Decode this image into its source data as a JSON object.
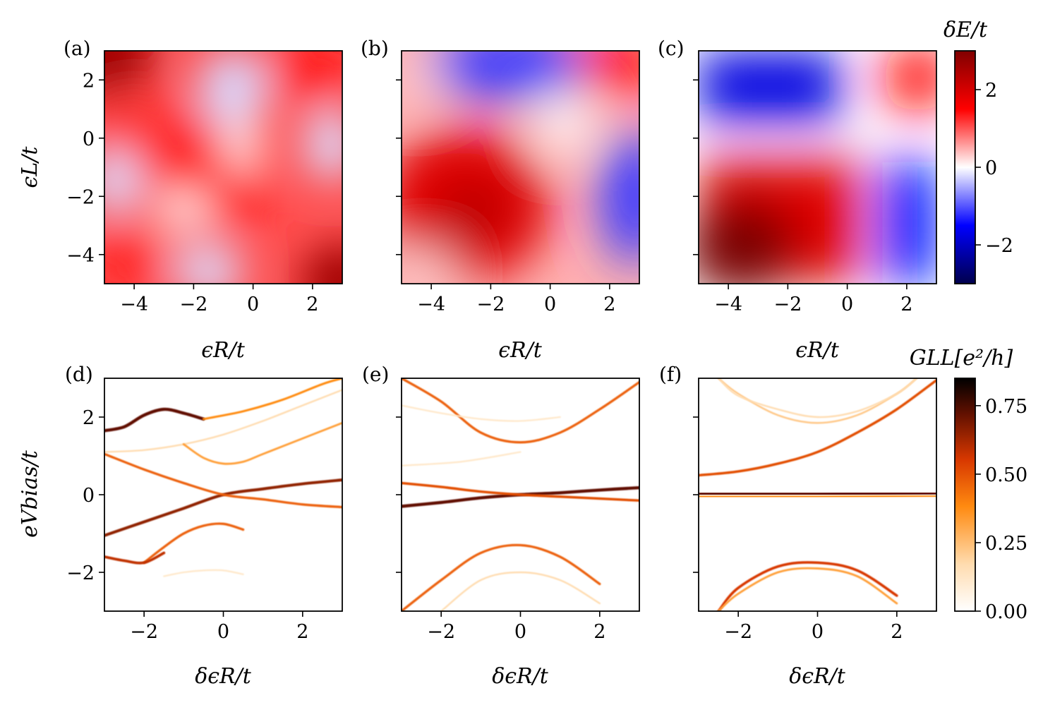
{
  "figure": {
    "top_row": {
      "xlabel": "ϵR/t",
      "ylabel": "ϵL/t",
      "xlim": [
        -5,
        3
      ],
      "ylim": [
        -5,
        3
      ],
      "xticks": [
        -4,
        -2,
        0,
        2
      ],
      "yticks": [
        -4,
        -2,
        0,
        2
      ],
      "xtick_labels": [
        "−4",
        "−2",
        "0",
        "2"
      ],
      "ytick_labels": [
        "−4",
        "−2",
        "0",
        "2"
      ]
    },
    "bottom_row": {
      "xlabel": "δϵR/t",
      "ylabel": "eVbias/t",
      "xlim": [
        -3,
        3
      ],
      "ylim": [
        -3,
        3
      ],
      "xticks": [
        -2,
        0,
        2
      ],
      "yticks": [
        -2,
        0,
        2
      ],
      "xtick_labels": [
        "−2",
        "0",
        "2"
      ],
      "ytick_labels": [
        "−2",
        "0",
        "2"
      ]
    },
    "panels": [
      "(a)",
      "(b)",
      "(c)",
      "(d)",
      "(e)",
      "(f)"
    ],
    "colorbar_top": {
      "title": "δE/t",
      "range": [
        -3,
        3
      ],
      "ticks": [
        -2,
        0,
        2
      ],
      "tick_labels": [
        "−2",
        "0",
        "2"
      ],
      "colormap": "seismic",
      "colors": [
        "#00004c",
        "#0000ff",
        "#ffffff",
        "#ff0000",
        "#800000"
      ]
    },
    "colorbar_bottom": {
      "title": "GLL[e²/h]",
      "range": [
        0,
        0.85
      ],
      "ticks": [
        0,
        0.25,
        0.5,
        0.75
      ],
      "tick_labels": [
        "0.00",
        "0.25",
        "0.50",
        "0.75"
      ],
      "colormap": "gist_heat_r",
      "colors": [
        "#ffffff",
        "#ffc080",
        "#ff7f00",
        "#bf2000",
        "#000000"
      ]
    }
  },
  "chart_data": [
    {
      "type": "heatmap",
      "panel": "(a)",
      "xlabel": "ϵR/t",
      "ylabel": "ϵL/t",
      "xlim": [
        -5,
        3
      ],
      "ylim": [
        -5,
        3
      ],
      "color_range": [
        -3,
        3
      ],
      "description": "δE/t map: red background, weak blue lobes at (-1,2.5),(2.5,-0.5),(-4.5,-1.2),(-1.5,-4.5); dark red corners at (-5,3) and (3,-5)",
      "features": [
        {
          "at": [
            -5,
            3
          ],
          "value": 2.6
        },
        {
          "at": [
            3,
            -5
          ],
          "value": 2.6
        },
        {
          "at": [
            -1,
            2.5
          ],
          "value": -0.6
        },
        {
          "at": [
            2.5,
            -0.5
          ],
          "value": -0.6
        },
        {
          "at": [
            -4.5,
            -1.2
          ],
          "value": -0.6
        },
        {
          "at": [
            -1.5,
            -4.5
          ],
          "value": -0.5
        },
        {
          "at": [
            -1,
            -1
          ],
          "value": 1.2
        }
      ]
    },
    {
      "type": "heatmap",
      "panel": "(b)",
      "xlabel": "ϵR/t",
      "ylabel": "ϵL/t",
      "xlim": [
        -5,
        3
      ],
      "ylim": [
        -5,
        3
      ],
      "color_range": [
        -3,
        3
      ],
      "features": [
        {
          "at": [
            -2.5,
            -2.5
          ],
          "value": 2.0
        },
        {
          "at": [
            -2,
            2.5
          ],
          "value": -1.6
        },
        {
          "at": [
            2.5,
            -2.5
          ],
          "value": -1.6
        },
        {
          "at": [
            2.5,
            2.5
          ],
          "value": 1.5
        },
        {
          "at": [
            0,
            0
          ],
          "value": 0.0
        }
      ]
    },
    {
      "type": "heatmap",
      "panel": "(c)",
      "xlabel": "ϵR/t",
      "ylabel": "ϵL/t",
      "xlim": [
        -5,
        3
      ],
      "ylim": [
        -5,
        3
      ],
      "color_range": [
        -3,
        3
      ],
      "features": [
        {
          "at": [
            -4,
            -4
          ],
          "value": 2.6
        },
        {
          "at": [
            -2,
            2.5
          ],
          "value": -2.0
        },
        {
          "at": [
            2.5,
            -2.5
          ],
          "value": -2.0
        },
        {
          "at": [
            2.5,
            2.5
          ],
          "value": 1.4
        },
        {
          "at": [
            0.2,
            0.2
          ],
          "value": 0.0
        }
      ]
    },
    {
      "type": "heatmap",
      "panel": "(d)",
      "xlabel": "δϵR/t",
      "ylabel": "eVbias/t",
      "xlim": [
        -3,
        3
      ],
      "ylim": [
        -3,
        3
      ],
      "color_range": [
        0,
        0.85
      ],
      "lines": [
        {
          "name": "zero-mode branch up",
          "x": [
            -3,
            -2,
            -1,
            0,
            1,
            2,
            3
          ],
          "y": [
            -1.05,
            -0.7,
            -0.35,
            0.0,
            0.15,
            0.28,
            0.38
          ],
          "intensity": 0.7
        },
        {
          "name": "zero-mode branch down",
          "x": [
            -3,
            -2,
            -1,
            0,
            1,
            2,
            3
          ],
          "y": [
            1.05,
            0.65,
            0.3,
            0.0,
            -0.12,
            -0.25,
            -0.32
          ],
          "intensity": 0.45
        },
        {
          "name": "upper band",
          "x": [
            -3,
            -2.5,
            -2,
            -1.5,
            -1,
            -0.5
          ],
          "y": [
            1.65,
            1.75,
            2.05,
            2.2,
            2.1,
            1.95
          ],
          "intensity": 0.8
        },
        {
          "name": "upper band 2",
          "x": [
            -0.5,
            0.5,
            1.5,
            2.5,
            3
          ],
          "y": [
            1.95,
            2.15,
            2.45,
            2.85,
            3.0
          ],
          "intensity": 0.35
        },
        {
          "name": "mid band",
          "x": [
            -3,
            -2,
            -1,
            0,
            1,
            2,
            3
          ],
          "y": [
            1.1,
            1.15,
            1.3,
            1.55,
            1.9,
            2.3,
            2.7
          ],
          "intensity": 0.15
        },
        {
          "name": "gap band upper",
          "x": [
            -1,
            -0.5,
            0,
            0.5,
            1,
            2,
            3
          ],
          "y": [
            1.3,
            0.95,
            0.8,
            0.85,
            1.05,
            1.45,
            1.85
          ],
          "intensity": 0.3
        },
        {
          "name": "gap band lower",
          "x": [
            -2,
            -1.5,
            -1,
            -0.5,
            0,
            0.5
          ],
          "y": [
            -1.75,
            -1.35,
            -1.0,
            -0.8,
            -0.75,
            -0.9
          ],
          "intensity": 0.45
        },
        {
          "name": "lower band",
          "x": [
            -3,
            -2.5,
            -2,
            -1.5
          ],
          "y": [
            -1.6,
            -1.7,
            -1.75,
            -1.5
          ],
          "intensity": 0.6
        },
        {
          "name": "lower faint",
          "x": [
            -1.5,
            -1,
            -0.5,
            0,
            0.5
          ],
          "y": [
            -2.1,
            -2.0,
            -1.95,
            -1.95,
            -2.05
          ],
          "intensity": 0.1
        }
      ]
    },
    {
      "type": "heatmap",
      "panel": "(e)",
      "xlabel": "δϵR/t",
      "ylabel": "eVbias/t",
      "xlim": [
        -3,
        3
      ],
      "ylim": [
        -3,
        3
      ],
      "color_range": [
        0,
        0.85
      ],
      "lines": [
        {
          "name": "zero mode up",
          "x": [
            -3,
            -2,
            -1,
            0,
            1,
            2,
            3
          ],
          "y": [
            -0.3,
            -0.2,
            -0.08,
            0.0,
            0.05,
            0.12,
            0.18
          ],
          "intensity": 0.8
        },
        {
          "name": "zero mode down",
          "x": [
            -3,
            -2,
            -1,
            0,
            1,
            2,
            3
          ],
          "y": [
            0.3,
            0.2,
            0.08,
            0.0,
            -0.05,
            -0.1,
            -0.15
          ],
          "intensity": 0.5
        },
        {
          "name": "upper band",
          "x": [
            -3,
            -2,
            -1,
            0,
            1,
            2,
            3
          ],
          "y": [
            3.0,
            2.4,
            1.6,
            1.35,
            1.6,
            2.2,
            2.9
          ],
          "intensity": 0.45
        },
        {
          "name": "upper faint",
          "x": [
            -3,
            -2,
            -1,
            0,
            1
          ],
          "y": [
            2.3,
            2.1,
            1.95,
            1.9,
            2.0
          ],
          "intensity": 0.1
        },
        {
          "name": "flat faint",
          "x": [
            -3,
            -1.5,
            0
          ],
          "y": [
            0.75,
            0.85,
            1.1
          ],
          "intensity": 0.1
        },
        {
          "name": "lower band",
          "x": [
            -3,
            -2,
            -1,
            0,
            1,
            2
          ],
          "y": [
            -3.0,
            -2.2,
            -1.5,
            -1.3,
            -1.6,
            -2.3
          ],
          "intensity": 0.45
        },
        {
          "name": "lower faint",
          "x": [
            -2,
            -1,
            0,
            1,
            2
          ],
          "y": [
            -3.0,
            -2.2,
            -2.0,
            -2.2,
            -2.8
          ],
          "intensity": 0.15
        }
      ]
    },
    {
      "type": "heatmap",
      "panel": "(f)",
      "xlabel": "δϵR/t",
      "ylabel": "eVbias/t",
      "xlim": [
        -3,
        3
      ],
      "ylim": [
        -3,
        3
      ],
      "color_range": [
        0,
        0.85
      ],
      "lines": [
        {
          "name": "zero mode",
          "x": [
            -3,
            -1.5,
            0,
            1.5,
            3
          ],
          "y": [
            0.02,
            0.02,
            0.02,
            0.03,
            0.04
          ],
          "intensity": 0.8
        },
        {
          "name": "zero mode 2",
          "x": [
            -3,
            -1.5,
            0,
            1.5,
            3
          ],
          "y": [
            -0.05,
            -0.05,
            -0.05,
            -0.04,
            -0.03
          ],
          "intensity": 0.35
        },
        {
          "name": "rising band",
          "x": [
            -3,
            -2,
            -1,
            0,
            1,
            2,
            3
          ],
          "y": [
            0.5,
            0.6,
            0.8,
            1.1,
            1.6,
            2.2,
            2.95
          ],
          "intensity": 0.5
        },
        {
          "name": "upper arc 1",
          "x": [
            -2.5,
            -2,
            -1,
            0,
            1,
            2,
            2.5
          ],
          "y": [
            3.0,
            2.6,
            2.05,
            1.85,
            2.05,
            2.6,
            3.0
          ],
          "intensity": 0.2
        },
        {
          "name": "upper arc 2",
          "x": [
            -2.5,
            -2,
            -1,
            0,
            1,
            2,
            2.5
          ],
          "y": [
            3.0,
            2.55,
            2.2,
            2.0,
            2.15,
            2.6,
            3.0
          ],
          "intensity": 0.15
        },
        {
          "name": "lower arc 1",
          "x": [
            -2.5,
            -2,
            -1,
            0,
            1,
            2
          ],
          "y": [
            -3.0,
            -2.4,
            -1.85,
            -1.75,
            -1.95,
            -2.6
          ],
          "intensity": 0.55
        },
        {
          "name": "lower arc 2",
          "x": [
            -2.5,
            -2,
            -1,
            0,
            1,
            2
          ],
          "y": [
            -3.0,
            -2.55,
            -2.0,
            -1.9,
            -2.1,
            -2.8
          ],
          "intensity": 0.3
        }
      ]
    }
  ]
}
